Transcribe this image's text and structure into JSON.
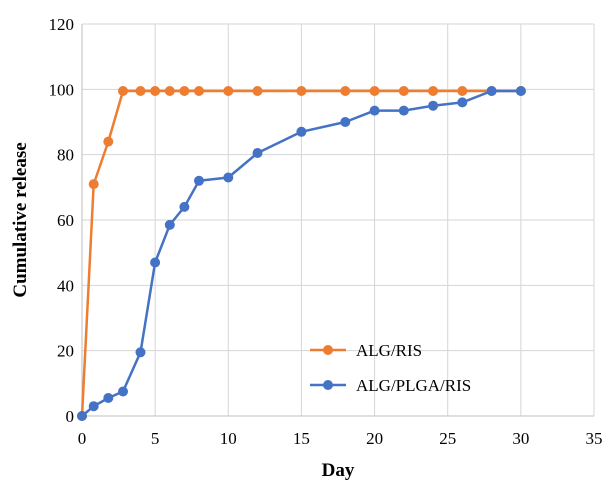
{
  "chart_data": {
    "type": "line",
    "xlabel": "Day",
    "ylabel": "Cumulative release",
    "xlim": [
      0,
      35
    ],
    "ylim": [
      0,
      120
    ],
    "xticks": [
      "0",
      "5",
      "10",
      "15",
      "20",
      "25",
      "30",
      "35"
    ],
    "yticks": [
      "0",
      "20",
      "40",
      "60",
      "80",
      "100",
      "120"
    ],
    "grid": true,
    "legend_position": "bottom-right",
    "series": [
      {
        "name": "ALG/RIS",
        "color": "#ED7D31",
        "x": [
          0,
          0.8,
          1.8,
          2.8,
          4,
          5,
          6,
          7,
          8,
          10,
          12,
          15,
          18,
          20,
          22,
          24,
          26,
          28,
          30
        ],
        "y": [
          0,
          71,
          84,
          99.5,
          99.5,
          99.5,
          99.5,
          99.5,
          99.5,
          99.5,
          99.5,
          99.5,
          99.5,
          99.5,
          99.5,
          99.5,
          99.5,
          99.5,
          99.5
        ]
      },
      {
        "name": "ALG/PLGA/RIS",
        "color": "#4472C4",
        "x": [
          0,
          0.8,
          1.8,
          2.8,
          4,
          5,
          6,
          7,
          8,
          10,
          12,
          15,
          18,
          20,
          22,
          24,
          26,
          28,
          30
        ],
        "y": [
          0,
          3,
          5.5,
          7.5,
          19.5,
          47,
          58.5,
          64,
          72,
          73,
          80.5,
          87,
          90,
          93.5,
          93.5,
          95,
          96,
          99.5,
          99.5
        ]
      }
    ]
  }
}
